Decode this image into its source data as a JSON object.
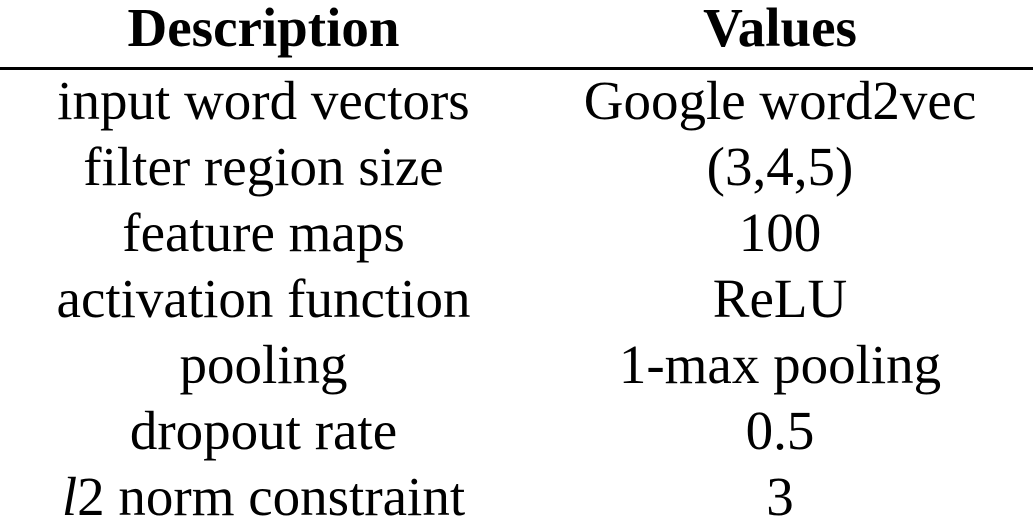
{
  "table": {
    "headers": {
      "description": "Description",
      "values": "Values"
    },
    "rows": [
      {
        "description": "input word vectors",
        "value": "Google word2vec"
      },
      {
        "description": "filter region size",
        "value": "(3,4,5)"
      },
      {
        "description": "feature maps",
        "value": "100"
      },
      {
        "description": "activation function",
        "value": "ReLU"
      },
      {
        "description": "pooling",
        "value": "1-max pooling"
      },
      {
        "description": "dropout rate",
        "value": "0.5"
      },
      {
        "description_italic_prefix": "l",
        "description": "2 norm constraint",
        "value": "3"
      }
    ]
  }
}
